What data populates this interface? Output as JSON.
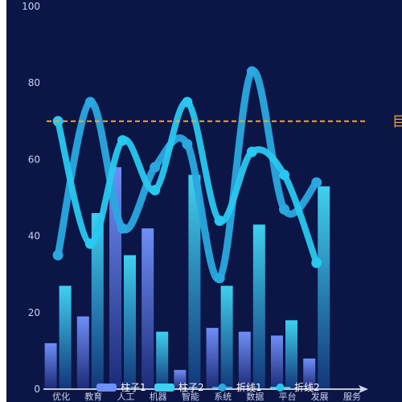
{
  "chart_data": {
    "type": "bar",
    "categories": [
      "优化",
      "教育",
      "人工",
      "机器",
      "智能",
      "系统",
      "数据",
      "平台",
      "发展",
      "服务"
    ],
    "ylim": [
      0,
      100
    ],
    "yticks": [
      0,
      20,
      40,
      60,
      80,
      100
    ],
    "grid": false,
    "series": [
      {
        "name": "柱子1",
        "type": "bar",
        "values": [
          12,
          19,
          58,
          42,
          5,
          16,
          15,
          14,
          8,
          null
        ]
      },
      {
        "name": "柱子2",
        "type": "bar",
        "values": [
          27,
          46,
          35,
          15,
          56,
          27,
          43,
          18,
          53,
          null
        ]
      },
      {
        "name": "折线1",
        "type": "line",
        "smooth": true,
        "values": [
          35,
          75,
          42,
          58,
          64,
          29,
          83,
          47,
          54,
          null
        ]
      },
      {
        "name": "折线2",
        "type": "line",
        "smooth": true,
        "values": [
          70,
          38,
          65,
          52,
          75,
          44,
          62,
          56,
          33,
          null
        ]
      }
    ],
    "markline": {
      "value": 70,
      "label": "目",
      "color": "#f5a623"
    },
    "legend": {
      "position": "bottom-center"
    },
    "colors": {
      "background": "#0b1647",
      "bar1_top": "#6f8ef7",
      "bar1_bottom": "#1c2a78",
      "bar2_top": "#3fd0ef",
      "bar2_bottom": "#12367a",
      "line1": "#2aa8e0",
      "line2": "#28c8f0",
      "axis": "#ffffff",
      "tick_text": "#c9d2ef"
    }
  }
}
